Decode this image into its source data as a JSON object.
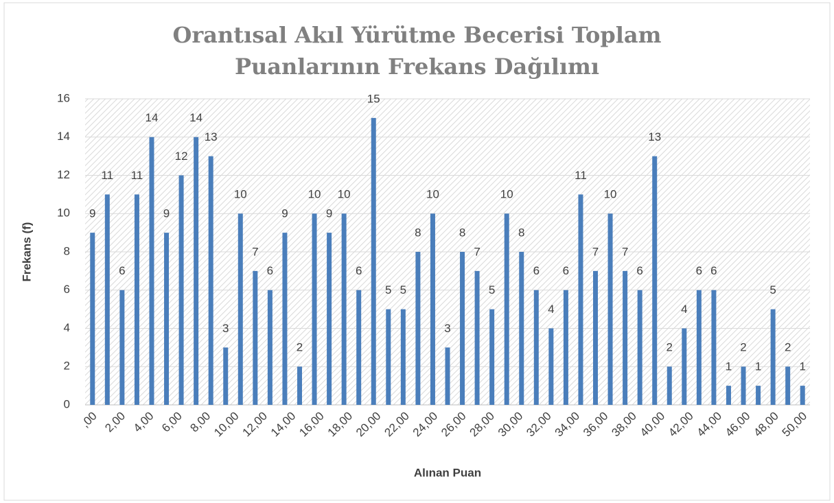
{
  "chart_data": {
    "type": "bar",
    "title": "Orantısal Akıl Yürütme Becerisi Toplam Puanlarının Frekans Dağılımı",
    "xlabel": "Alınan Puan",
    "ylabel": "Frekans (f)",
    "xtick_labels": [
      ",00",
      "2,00",
      "4,00",
      "6,00",
      "8,00",
      "10,00",
      "12,00",
      "14,00",
      "16,00",
      "18,00",
      "20,00",
      "22,00",
      "24,00",
      "26,00",
      "28,00",
      "30,00",
      "32,00",
      "34,00",
      "36,00",
      "38,00",
      "40,00",
      "42,00",
      "44,00",
      "46,00",
      "48,00",
      "50,00"
    ],
    "values": [
      9,
      11,
      6,
      11,
      14,
      9,
      12,
      14,
      13,
      3,
      10,
      7,
      6,
      9,
      2,
      10,
      9,
      10,
      6,
      15,
      5,
      5,
      8,
      10,
      3,
      8,
      7,
      5,
      10,
      8,
      6,
      4,
      6,
      11,
      7,
      10,
      7,
      6,
      13,
      2,
      4,
      6,
      6,
      1,
      2,
      1,
      5,
      2,
      1
    ],
    "color": "#4a7ebb",
    "ylim": [
      0,
      16
    ],
    "yticks": [
      0,
      2,
      4,
      6,
      8,
      10,
      12,
      14,
      16
    ],
    "grid": true
  }
}
